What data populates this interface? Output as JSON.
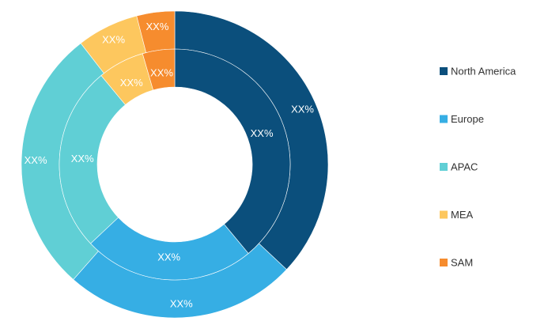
{
  "chart_data": {
    "type": "pie",
    "subtype": "double-donut",
    "categories": [
      "North America",
      "Europe",
      "APAC",
      "MEA",
      "SAM"
    ],
    "colors": [
      "#0B4F7C",
      "#36AEE4",
      "#60CFD5",
      "#FDC75E",
      "#F68C2E"
    ],
    "series": [
      {
        "ring": "outer",
        "values": [
          37,
          24.5,
          28,
          6.5,
          4
        ],
        "labels": [
          "XX%",
          "XX%",
          "XX%",
          "XX%",
          "XX%"
        ]
      },
      {
        "ring": "inner",
        "values": [
          39,
          24,
          26,
          6.5,
          4.5
        ],
        "labels": [
          "XX%",
          "XX%",
          "XX%",
          "XX%",
          "XX%"
        ]
      }
    ],
    "legend_position": "right"
  }
}
